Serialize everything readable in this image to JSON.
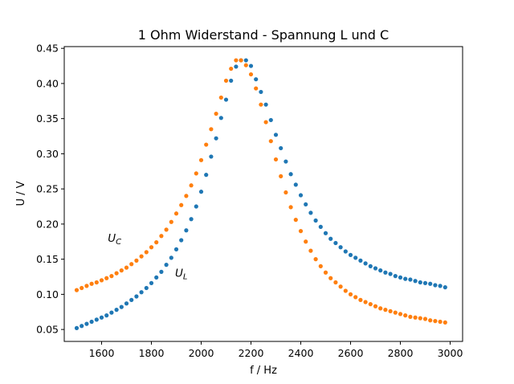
{
  "chart_data": {
    "type": "scatter",
    "title": "1 Ohm Widerstand - Spannung L und C",
    "xlabel": "f / Hz",
    "ylabel": "U / V",
    "xlim": [
      1450,
      3050
    ],
    "ylim": [
      0.033,
      0.4525
    ],
    "xticks": [
      1600,
      1800,
      2000,
      2200,
      2400,
      2600,
      2800,
      3000
    ],
    "yticks": [
      0.05,
      0.1,
      0.15,
      0.2,
      0.25,
      0.3,
      0.35,
      0.4,
      0.45
    ],
    "grid": false,
    "legend": "none",
    "annotations": [
      {
        "main": "U",
        "sub": "C",
        "x": 1625,
        "y": 0.175
      },
      {
        "main": "U",
        "sub": "L",
        "x": 1895,
        "y": 0.125
      }
    ],
    "series": [
      {
        "key": "UL",
        "color": "#1f77b4",
        "x": [
          1500,
          1520,
          1540,
          1560,
          1580,
          1600,
          1620,
          1640,
          1660,
          1680,
          1700,
          1720,
          1740,
          1760,
          1780,
          1800,
          1820,
          1840,
          1860,
          1880,
          1900,
          1920,
          1940,
          1960,
          1980,
          2000,
          2020,
          2040,
          2060,
          2080,
          2100,
          2120,
          2140,
          2160,
          2180,
          2200,
          2220,
          2240,
          2260,
          2280,
          2300,
          2320,
          2340,
          2360,
          2380,
          2400,
          2420,
          2440,
          2460,
          2480,
          2500,
          2520,
          2540,
          2560,
          2580,
          2600,
          2620,
          2640,
          2660,
          2680,
          2700,
          2720,
          2740,
          2760,
          2780,
          2800,
          2820,
          2840,
          2860,
          2880,
          2900,
          2920,
          2940,
          2960,
          2980
        ],
        "y": [
          0.052,
          0.055,
          0.058,
          0.061,
          0.064,
          0.067,
          0.07,
          0.074,
          0.078,
          0.082,
          0.087,
          0.092,
          0.097,
          0.103,
          0.109,
          0.116,
          0.124,
          0.132,
          0.142,
          0.152,
          0.164,
          0.177,
          0.191,
          0.207,
          0.225,
          0.246,
          0.27,
          0.296,
          0.322,
          0.351,
          0.377,
          0.404,
          0.424,
          0.433,
          0.433,
          0.425,
          0.406,
          0.388,
          0.37,
          0.348,
          0.327,
          0.308,
          0.289,
          0.271,
          0.256,
          0.241,
          0.228,
          0.216,
          0.205,
          0.196,
          0.187,
          0.179,
          0.173,
          0.167,
          0.161,
          0.156,
          0.152,
          0.148,
          0.144,
          0.14,
          0.137,
          0.134,
          0.131,
          0.129,
          0.126,
          0.124,
          0.122,
          0.121,
          0.119,
          0.117,
          0.116,
          0.115,
          0.113,
          0.112,
          0.11
        ]
      },
      {
        "key": "UC",
        "color": "#ff7f0e",
        "x": [
          1500,
          1520,
          1540,
          1560,
          1580,
          1600,
          1620,
          1640,
          1660,
          1680,
          1700,
          1720,
          1740,
          1760,
          1780,
          1800,
          1820,
          1840,
          1860,
          1880,
          1900,
          1920,
          1940,
          1960,
          1980,
          2000,
          2020,
          2040,
          2060,
          2080,
          2100,
          2120,
          2140,
          2160,
          2180,
          2200,
          2220,
          2240,
          2260,
          2280,
          2300,
          2320,
          2340,
          2360,
          2380,
          2400,
          2420,
          2440,
          2460,
          2480,
          2500,
          2520,
          2540,
          2560,
          2580,
          2600,
          2620,
          2640,
          2660,
          2680,
          2700,
          2720,
          2740,
          2760,
          2780,
          2800,
          2820,
          2840,
          2860,
          2880,
          2900,
          2920,
          2940,
          2960,
          2980
        ],
        "y": [
          0.106,
          0.109,
          0.112,
          0.115,
          0.117,
          0.12,
          0.123,
          0.126,
          0.13,
          0.134,
          0.138,
          0.143,
          0.148,
          0.154,
          0.16,
          0.167,
          0.174,
          0.183,
          0.192,
          0.203,
          0.215,
          0.227,
          0.24,
          0.255,
          0.272,
          0.291,
          0.313,
          0.335,
          0.357,
          0.38,
          0.404,
          0.421,
          0.433,
          0.433,
          0.426,
          0.413,
          0.393,
          0.37,
          0.345,
          0.318,
          0.292,
          0.268,
          0.245,
          0.224,
          0.206,
          0.19,
          0.175,
          0.162,
          0.15,
          0.14,
          0.131,
          0.123,
          0.117,
          0.111,
          0.105,
          0.1,
          0.096,
          0.092,
          0.089,
          0.086,
          0.083,
          0.08,
          0.078,
          0.076,
          0.074,
          0.072,
          0.07,
          0.068,
          0.067,
          0.066,
          0.065,
          0.063,
          0.062,
          0.061,
          0.06
        ]
      }
    ]
  }
}
